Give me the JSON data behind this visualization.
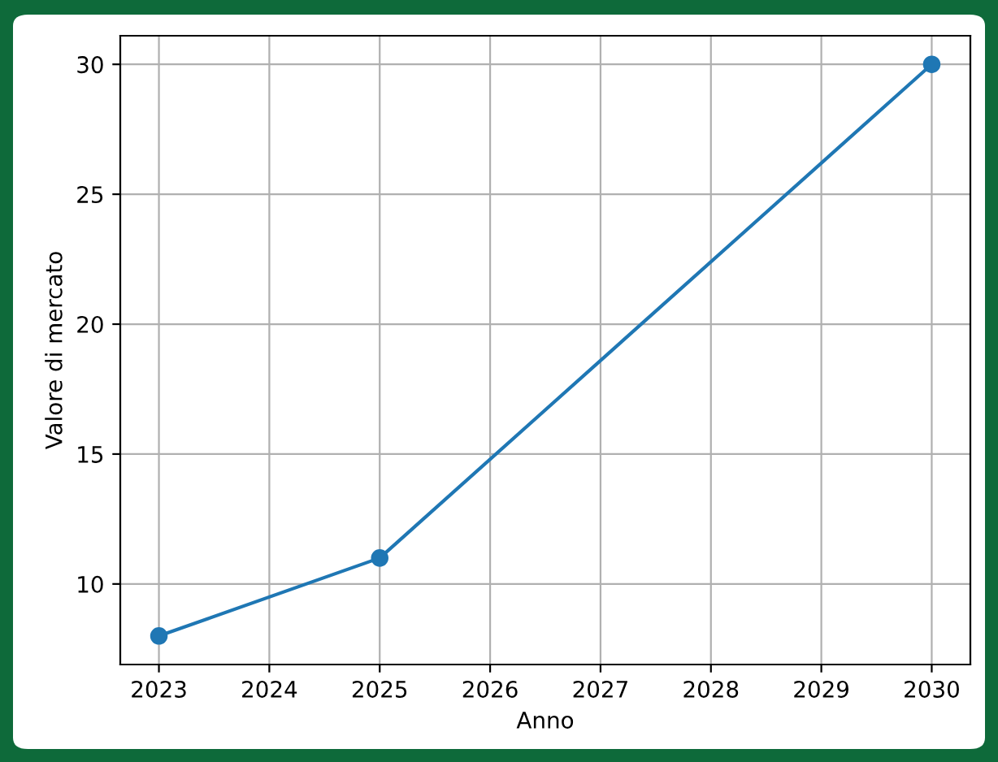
{
  "chart_data": {
    "type": "line",
    "xlabel": "Anno",
    "ylabel": "Valore di mercato",
    "x": [
      2023,
      2025,
      2030
    ],
    "series": [
      {
        "color": "#1f77b4",
        "values": [
          8,
          11,
          30
        ]
      }
    ],
    "xlim": [
      2022.65,
      2030.35
    ],
    "ylim": [
      6.9,
      31.1
    ],
    "xticks": [
      2023,
      2024,
      2025,
      2026,
      2027,
      2028,
      2029,
      2030
    ],
    "yticks": [
      10,
      15,
      20,
      25,
      30
    ],
    "grid": true,
    "marker": "circle",
    "line_style": "solid"
  }
}
